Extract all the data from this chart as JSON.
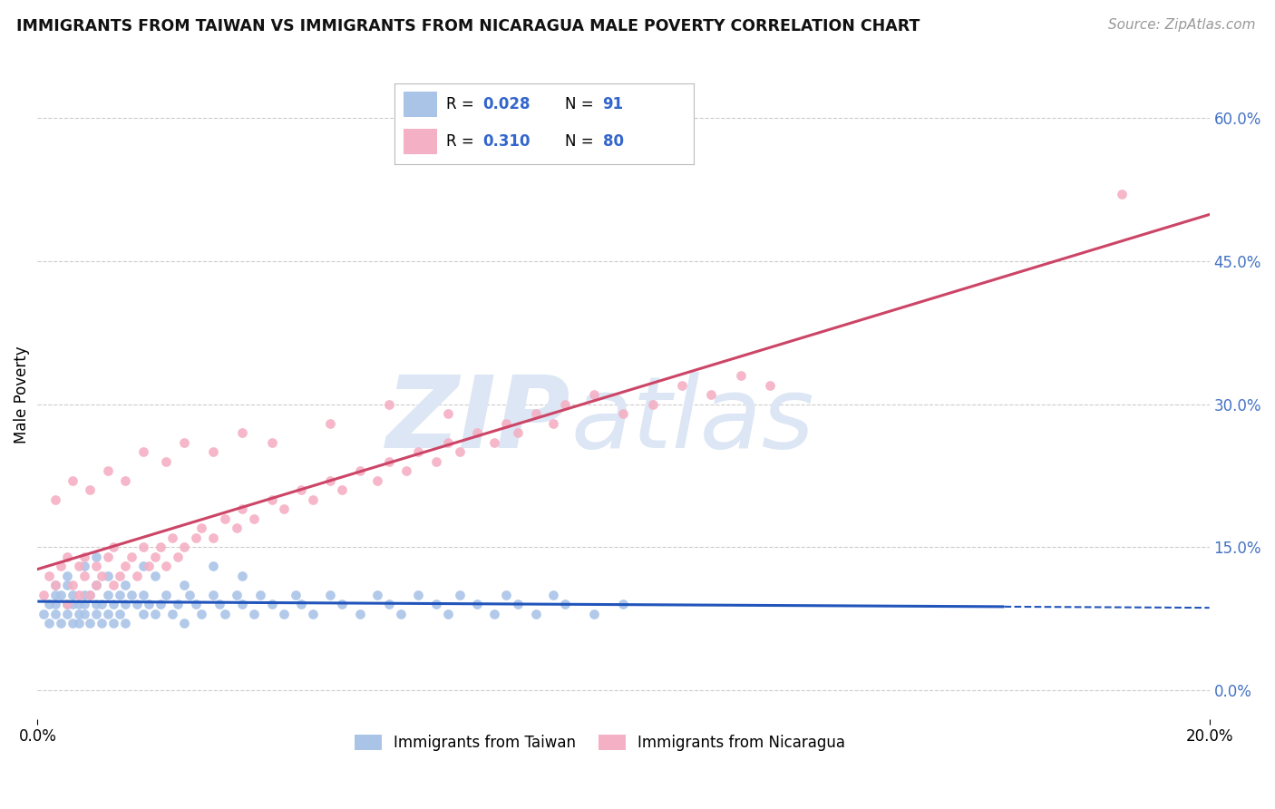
{
  "title": "IMMIGRANTS FROM TAIWAN VS IMMIGRANTS FROM NICARAGUA MALE POVERTY CORRELATION CHART",
  "source": "Source: ZipAtlas.com",
  "ylabel": "Male Poverty",
  "taiwan_R": 0.028,
  "taiwan_N": 91,
  "nicaragua_R": 0.31,
  "nicaragua_N": 80,
  "taiwan_color": "#aac4e8",
  "nicaragua_color": "#f4b0c4",
  "taiwan_line_color": "#2255bb",
  "nicaragua_line_color": "#cc4466",
  "xlim": [
    0.0,
    0.2
  ],
  "ylim": [
    -0.03,
    0.65
  ],
  "right_yticks": [
    0.0,
    0.15,
    0.3,
    0.45,
    0.6
  ],
  "right_ytick_labels": [
    "0.0%",
    "15.0%",
    "30.0%",
    "45.0%",
    "60.0%"
  ],
  "watermark_color": "#dce6f4",
  "legend_label_taiwan": "Immigrants from Taiwan",
  "legend_label_nicaragua": "Immigrants from Nicaragua",
  "bg_color": "#ffffff",
  "grid_color": "#cccccc",
  "taiwan_scatter_x": [
    0.001,
    0.002,
    0.002,
    0.003,
    0.003,
    0.003,
    0.004,
    0.004,
    0.005,
    0.005,
    0.005,
    0.006,
    0.006,
    0.006,
    0.007,
    0.007,
    0.007,
    0.008,
    0.008,
    0.008,
    0.009,
    0.009,
    0.01,
    0.01,
    0.01,
    0.011,
    0.011,
    0.012,
    0.012,
    0.013,
    0.013,
    0.014,
    0.014,
    0.015,
    0.015,
    0.016,
    0.017,
    0.018,
    0.018,
    0.019,
    0.02,
    0.021,
    0.022,
    0.023,
    0.024,
    0.025,
    0.026,
    0.027,
    0.028,
    0.03,
    0.031,
    0.032,
    0.034,
    0.035,
    0.037,
    0.038,
    0.04,
    0.042,
    0.044,
    0.045,
    0.047,
    0.05,
    0.052,
    0.055,
    0.058,
    0.06,
    0.062,
    0.065,
    0.068,
    0.07,
    0.072,
    0.075,
    0.078,
    0.08,
    0.082,
    0.085,
    0.088,
    0.09,
    0.095,
    0.1,
    0.003,
    0.005,
    0.008,
    0.01,
    0.012,
    0.015,
    0.018,
    0.02,
    0.025,
    0.03,
    0.035
  ],
  "taiwan_scatter_y": [
    0.08,
    0.09,
    0.07,
    0.1,
    0.08,
    0.09,
    0.07,
    0.1,
    0.08,
    0.09,
    0.11,
    0.07,
    0.09,
    0.1,
    0.08,
    0.09,
    0.07,
    0.1,
    0.08,
    0.09,
    0.07,
    0.1,
    0.08,
    0.09,
    0.11,
    0.07,
    0.09,
    0.08,
    0.1,
    0.09,
    0.07,
    0.1,
    0.08,
    0.09,
    0.07,
    0.1,
    0.09,
    0.08,
    0.1,
    0.09,
    0.08,
    0.09,
    0.1,
    0.08,
    0.09,
    0.07,
    0.1,
    0.09,
    0.08,
    0.1,
    0.09,
    0.08,
    0.1,
    0.09,
    0.08,
    0.1,
    0.09,
    0.08,
    0.1,
    0.09,
    0.08,
    0.1,
    0.09,
    0.08,
    0.1,
    0.09,
    0.08,
    0.1,
    0.09,
    0.08,
    0.1,
    0.09,
    0.08,
    0.1,
    0.09,
    0.08,
    0.1,
    0.09,
    0.08,
    0.09,
    0.11,
    0.12,
    0.13,
    0.14,
    0.12,
    0.11,
    0.13,
    0.12,
    0.11,
    0.13,
    0.12
  ],
  "nicaragua_scatter_x": [
    0.001,
    0.002,
    0.003,
    0.004,
    0.005,
    0.005,
    0.006,
    0.007,
    0.007,
    0.008,
    0.008,
    0.009,
    0.01,
    0.01,
    0.011,
    0.012,
    0.013,
    0.013,
    0.014,
    0.015,
    0.016,
    0.017,
    0.018,
    0.019,
    0.02,
    0.021,
    0.022,
    0.023,
    0.024,
    0.025,
    0.027,
    0.028,
    0.03,
    0.032,
    0.034,
    0.035,
    0.037,
    0.04,
    0.042,
    0.045,
    0.047,
    0.05,
    0.052,
    0.055,
    0.058,
    0.06,
    0.063,
    0.065,
    0.068,
    0.07,
    0.072,
    0.075,
    0.078,
    0.08,
    0.082,
    0.085,
    0.088,
    0.09,
    0.095,
    0.1,
    0.105,
    0.11,
    0.115,
    0.12,
    0.125,
    0.003,
    0.006,
    0.009,
    0.012,
    0.015,
    0.018,
    0.022,
    0.025,
    0.03,
    0.035,
    0.04,
    0.05,
    0.06,
    0.07,
    0.185
  ],
  "nicaragua_scatter_y": [
    0.1,
    0.12,
    0.11,
    0.13,
    0.09,
    0.14,
    0.11,
    0.13,
    0.1,
    0.12,
    0.14,
    0.1,
    0.11,
    0.13,
    0.12,
    0.14,
    0.11,
    0.15,
    0.12,
    0.13,
    0.14,
    0.12,
    0.15,
    0.13,
    0.14,
    0.15,
    0.13,
    0.16,
    0.14,
    0.15,
    0.16,
    0.17,
    0.16,
    0.18,
    0.17,
    0.19,
    0.18,
    0.2,
    0.19,
    0.21,
    0.2,
    0.22,
    0.21,
    0.23,
    0.22,
    0.24,
    0.23,
    0.25,
    0.24,
    0.26,
    0.25,
    0.27,
    0.26,
    0.28,
    0.27,
    0.29,
    0.28,
    0.3,
    0.31,
    0.29,
    0.3,
    0.32,
    0.31,
    0.33,
    0.32,
    0.2,
    0.22,
    0.21,
    0.23,
    0.22,
    0.25,
    0.24,
    0.26,
    0.25,
    0.27,
    0.26,
    0.28,
    0.3,
    0.29,
    0.52
  ]
}
